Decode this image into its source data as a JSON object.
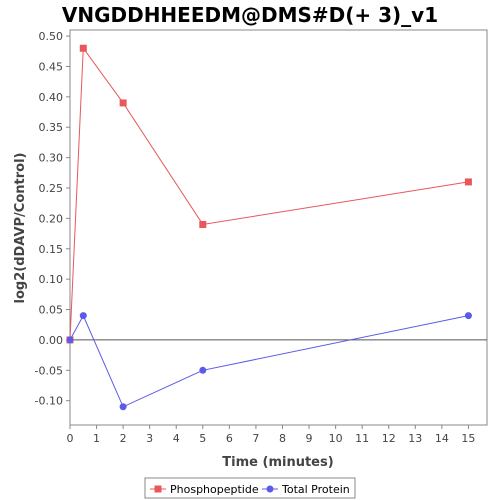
{
  "chart_data": {
    "type": "line",
    "title": "VNGDDHHEEDM@DMS#D(+ 3)_v1",
    "xlabel": "Time (minutes)",
    "ylabel": "log2(dDAVP/Control)",
    "xlim": [
      0,
      15.7
    ],
    "ylim": [
      -0.14,
      0.51
    ],
    "xticks": [
      0,
      1,
      2,
      3,
      4,
      5,
      6,
      7,
      8,
      9,
      10,
      11,
      12,
      13,
      14,
      15
    ],
    "xtick_labels": [
      "0",
      "1",
      "2",
      "3",
      "4",
      "5",
      "6",
      "7",
      "8",
      "9",
      "10",
      "11",
      "12",
      "13",
      "14",
      "15"
    ],
    "yticks": [
      -0.1,
      -0.05,
      0.0,
      0.05,
      0.1,
      0.15,
      0.2,
      0.25,
      0.3,
      0.35,
      0.4,
      0.45,
      0.5
    ],
    "ytick_labels": [
      "-0.10",
      "-0.05",
      "0.00",
      "0.05",
      "0.10",
      "0.15",
      "0.20",
      "0.25",
      "0.30",
      "0.35",
      "0.40",
      "0.45",
      "0.50"
    ],
    "grid": false,
    "zero_line": true,
    "legend_position": "bottom",
    "series": [
      {
        "name": "Phosphopeptide",
        "marker": "square",
        "color": "#e8575a",
        "x": [
          0,
          0.5,
          2,
          5,
          15
        ],
        "y": [
          0.0,
          0.48,
          0.39,
          0.19,
          0.26
        ]
      },
      {
        "name": "Total Protein",
        "marker": "circle",
        "color": "#5b5be8",
        "x": [
          0,
          0.5,
          2,
          5,
          15
        ],
        "y": [
          0.0,
          0.04,
          -0.11,
          -0.05,
          0.04
        ]
      }
    ]
  }
}
